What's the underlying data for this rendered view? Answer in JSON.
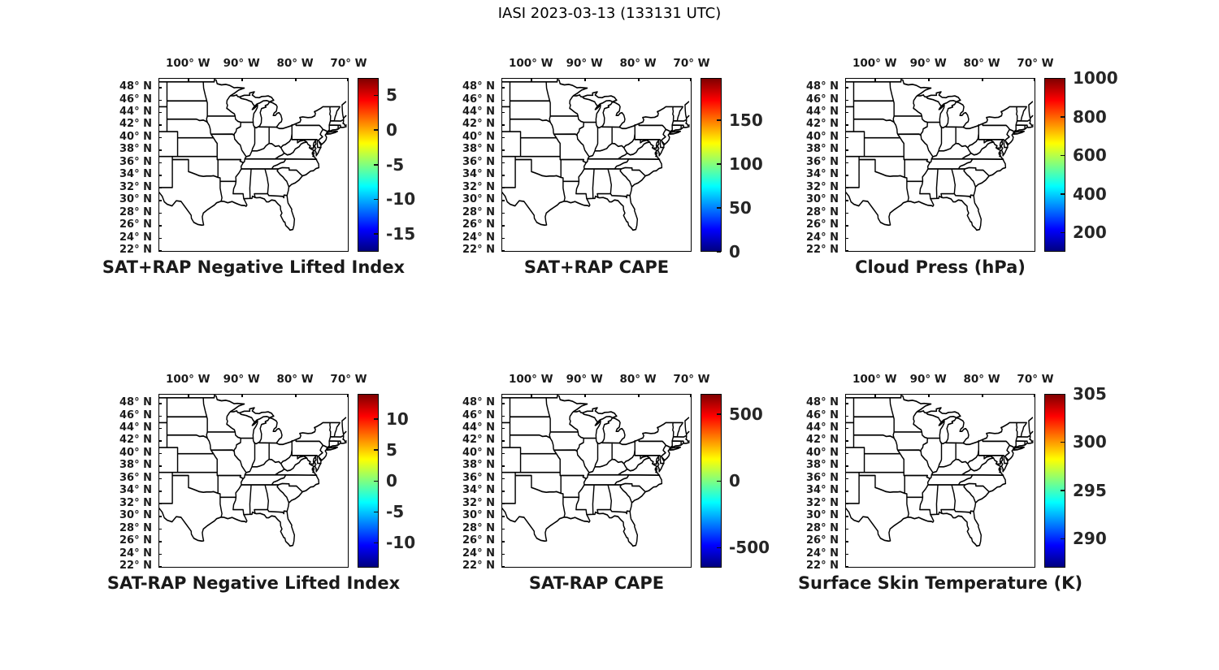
{
  "title": "IASI 2023-03-13 (133131 UTC)",
  "axes": {
    "lon_range": [
      -105.5,
      -70.0
    ],
    "lat_range": [
      21.8,
      49.5
    ],
    "lon_ticks": [
      {
        "value": -100,
        "label": "100° W"
      },
      {
        "value": -90,
        "label": "90° W"
      },
      {
        "value": -80,
        "label": "80° W"
      },
      {
        "value": -70,
        "label": "70° W"
      }
    ],
    "lat_ticks": [
      {
        "value": 48,
        "label": "48° N"
      },
      {
        "value": 46,
        "label": "46° N"
      },
      {
        "value": 44,
        "label": "44° N"
      },
      {
        "value": 42,
        "label": "42° N"
      },
      {
        "value": 40,
        "label": "40° N"
      },
      {
        "value": 38,
        "label": "38° N"
      },
      {
        "value": 36,
        "label": "36° N"
      },
      {
        "value": 34,
        "label": "34° N"
      },
      {
        "value": 32,
        "label": "32° N"
      },
      {
        "value": 30,
        "label": "30° N"
      },
      {
        "value": 28,
        "label": "28° N"
      },
      {
        "value": 26,
        "label": "26° N"
      },
      {
        "value": 24,
        "label": "24° N"
      },
      {
        "value": 22,
        "label": "22° N"
      }
    ]
  },
  "panels": [
    {
      "title": "SAT+RAP Negative Lifted Index",
      "colorbar": {
        "vmin": -17.6,
        "vmax": 7.5,
        "ticks": [
          {
            "value": 5,
            "label": "5"
          },
          {
            "value": 0,
            "label": "0"
          },
          {
            "value": -5,
            "label": "-5"
          },
          {
            "value": -10,
            "label": "-10"
          },
          {
            "value": -15,
            "label": "-15"
          }
        ]
      }
    },
    {
      "title": "SAT+RAP CAPE",
      "colorbar": {
        "vmin": 0,
        "vmax": 198,
        "ticks": [
          {
            "value": 150,
            "label": "150"
          },
          {
            "value": 100,
            "label": "100"
          },
          {
            "value": 50,
            "label": "50"
          },
          {
            "value": 0,
            "label": "0"
          }
        ]
      }
    },
    {
      "title": "Cloud Press (hPa)",
      "colorbar": {
        "vmin": 100,
        "vmax": 1000,
        "ticks": [
          {
            "value": 1000,
            "label": "1000"
          },
          {
            "value": 800,
            "label": "800"
          },
          {
            "value": 600,
            "label": "600"
          },
          {
            "value": 400,
            "label": "400"
          },
          {
            "value": 200,
            "label": "200"
          }
        ]
      }
    },
    {
      "title": "SAT-RAP Negative Lifted Index",
      "colorbar": {
        "vmin": -14,
        "vmax": 14,
        "ticks": [
          {
            "value": 10,
            "label": "10"
          },
          {
            "value": 5,
            "label": "5"
          },
          {
            "value": 0,
            "label": "0"
          },
          {
            "value": -5,
            "label": "-5"
          },
          {
            "value": -10,
            "label": "-10"
          }
        ]
      }
    },
    {
      "title": "SAT-RAP CAPE",
      "colorbar": {
        "vmin": -650,
        "vmax": 650,
        "ticks": [
          {
            "value": 500,
            "label": "500"
          },
          {
            "value": 0,
            "label": "0"
          },
          {
            "value": -500,
            "label": "-500"
          }
        ]
      }
    },
    {
      "title": "Surface Skin Temperature (K)",
      "colorbar": {
        "vmin": 287,
        "vmax": 305,
        "ticks": [
          {
            "value": 305,
            "label": "305"
          },
          {
            "value": 300,
            "label": "300"
          },
          {
            "value": 295,
            "label": "295"
          },
          {
            "value": 290,
            "label": "290"
          }
        ]
      }
    }
  ],
  "colors": {
    "jet_stops": [
      "#000080",
      "#0000ff",
      "#00ffff",
      "#ffff00",
      "#ff0000",
      "#800000"
    ],
    "text": "#262626",
    "line": "#000000"
  },
  "chart_data": {
    "type": "heatmap",
    "subtype": "geographic map panels (2 rows x 3 cols), US state outlines, no data field plotted (blank maps)",
    "figure_title": "IASI 2023-03-13 (133131 UTC)",
    "map_extent": {
      "lon_deg_west": [
        -105.5,
        -70.0
      ],
      "lat_deg_north": [
        21.8,
        49.5
      ]
    },
    "x_tick_labels": [
      "100° W",
      "90° W",
      "80° W",
      "70° W"
    ],
    "y_tick_labels": [
      "48° N",
      "46° N",
      "44° N",
      "42° N",
      "40° N",
      "38° N",
      "36° N",
      "34° N",
      "32° N",
      "30° N",
      "28° N",
      "26° N",
      "24° N",
      "22° N"
    ],
    "colormap": "jet",
    "series": [
      {
        "name": "SAT+RAP Negative Lifted Index",
        "colorbar_ticks": [
          5,
          0,
          -5,
          -10,
          -15
        ],
        "colorbar_range": [
          -17.6,
          7.5
        ],
        "values": []
      },
      {
        "name": "SAT+RAP CAPE",
        "colorbar_ticks": [
          150,
          100,
          50,
          0
        ],
        "colorbar_range": [
          0,
          198
        ],
        "values": []
      },
      {
        "name": "Cloud Press (hPa)",
        "colorbar_ticks": [
          1000,
          800,
          600,
          400,
          200
        ],
        "colorbar_range": [
          100,
          1000
        ],
        "values": []
      },
      {
        "name": "SAT-RAP Negative Lifted Index",
        "colorbar_ticks": [
          10,
          5,
          0,
          -5,
          -10
        ],
        "colorbar_range": [
          -14,
          14
        ],
        "values": []
      },
      {
        "name": "SAT-RAP CAPE",
        "colorbar_ticks": [
          500,
          0,
          -500
        ],
        "colorbar_range": [
          -650,
          650
        ],
        "values": []
      },
      {
        "name": "Surface Skin Temperature (K)",
        "colorbar_ticks": [
          305,
          300,
          295,
          290
        ],
        "colorbar_range": [
          287,
          305
        ],
        "values": []
      }
    ],
    "legend": "none",
    "grid": "off"
  }
}
